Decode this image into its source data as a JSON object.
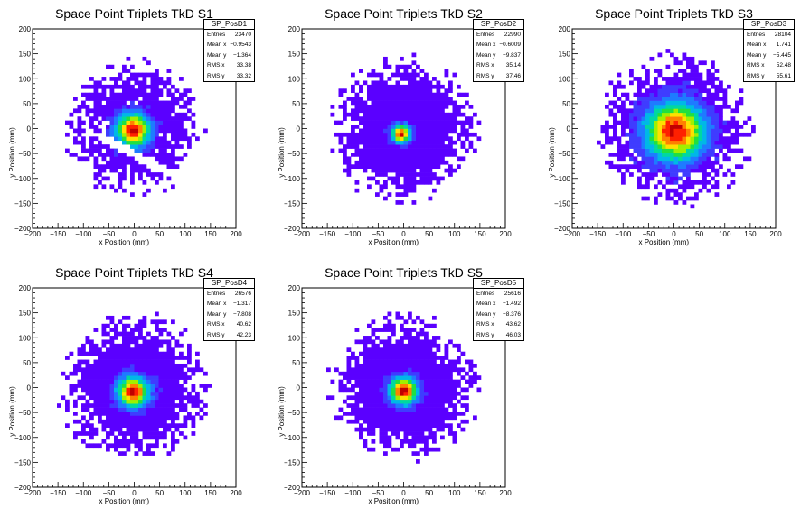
{
  "chart_data": [
    {
      "type": "heatmap",
      "title": "Space Point Triplets TkD S1",
      "xlabel": "x Position (mm)",
      "ylabel": "y Position (mm)",
      "xlim": [
        -200,
        200
      ],
      "ylim": [
        -200,
        200
      ],
      "xticks": [
        "−200",
        "−150",
        "−100",
        "−50",
        "0",
        "50",
        "100",
        "150",
        "200"
      ],
      "yticks": [
        "200",
        "150",
        "100",
        "50",
        "0",
        "−50",
        "−100",
        "−150",
        "−200"
      ],
      "stats": {
        "name": "SP_PosD1",
        "rows": [
          {
            "label": "Entries",
            "value": "23470"
          },
          {
            "label": "Mean x",
            "value": "−0.9543"
          },
          {
            "label": "Mean y",
            "value": "−1.364"
          },
          {
            "label": "RMS x",
            "value": "33.38"
          },
          {
            "label": "RMS y",
            "value": "33.32"
          }
        ]
      },
      "distribution": {
        "center": [
          -2,
          -3
        ],
        "core_sigma": 22,
        "halo_radius": 140,
        "features": "diagonal band of empty bins below the core"
      }
    },
    {
      "type": "heatmap",
      "title": "Space Point Triplets TkD S2",
      "xlabel": "x Position (mm)",
      "ylabel": "y Position (mm)",
      "xlim": [
        -200,
        200
      ],
      "ylim": [
        -200,
        200
      ],
      "xticks": [
        "−200",
        "−150",
        "−100",
        "−50",
        "0",
        "50",
        "100",
        "150",
        "200"
      ],
      "yticks": [
        "200",
        "150",
        "100",
        "50",
        "0",
        "−50",
        "−100",
        "−150",
        "−200"
      ],
      "stats": {
        "name": "SP_PosD2",
        "rows": [
          {
            "label": "Entries",
            "value": "22990"
          },
          {
            "label": "Mean x",
            "value": "−0.6009"
          },
          {
            "label": "Mean y",
            "value": "−9.837"
          },
          {
            "label": "RMS x",
            "value": "35.14"
          },
          {
            "label": "RMS y",
            "value": "37.46"
          }
        ]
      },
      "distribution": {
        "center": [
          -5,
          -10
        ],
        "core_sigma": 12,
        "halo_radius": 150
      }
    },
    {
      "type": "heatmap",
      "title": "Space Point Triplets TkD S3",
      "xlabel": "x Position (mm)",
      "ylabel": "y Position (mm)",
      "xlim": [
        -200,
        200
      ],
      "ylim": [
        -200,
        200
      ],
      "xticks": [
        "−200",
        "−150",
        "−100",
        "−50",
        "0",
        "50",
        "100",
        "150",
        "200"
      ],
      "yticks": [
        "200",
        "150",
        "100",
        "50",
        "0",
        "−50",
        "−100",
        "−150",
        "−200"
      ],
      "stats": {
        "name": "SP_PosD3",
        "rows": [
          {
            "label": "Entries",
            "value": "28104"
          },
          {
            "label": "Mean x",
            "value": "1.741"
          },
          {
            "label": "Mean y",
            "value": "−5.445"
          },
          {
            "label": "RMS x",
            "value": "52.48"
          },
          {
            "label": "RMS y",
            "value": "55.61"
          }
        ]
      },
      "distribution": {
        "center": [
          2,
          -5
        ],
        "core_sigma": 38,
        "halo_radius": 155
      }
    },
    {
      "type": "heatmap",
      "title": "Space Point Triplets TkD S4",
      "xlabel": "x Position (mm)",
      "ylabel": "y Position (mm)",
      "xlim": [
        -200,
        200
      ],
      "ylim": [
        -200,
        200
      ],
      "xticks": [
        "−200",
        "−150",
        "−100",
        "−50",
        "0",
        "50",
        "100",
        "150",
        "200"
      ],
      "yticks": [
        "200",
        "150",
        "100",
        "50",
        "0",
        "−50",
        "−100",
        "−150",
        "−200"
      ],
      "stats": {
        "name": "SP_PosD4",
        "rows": [
          {
            "label": "Entries",
            "value": "26576"
          },
          {
            "label": "Mean x",
            "value": "−1.317"
          },
          {
            "label": "Mean y",
            "value": "−7.808"
          },
          {
            "label": "RMS x",
            "value": "40.62"
          },
          {
            "label": "RMS y",
            "value": "42.23"
          }
        ]
      },
      "distribution": {
        "center": [
          -2,
          -8
        ],
        "core_sigma": 20,
        "halo_radius": 150
      }
    },
    {
      "type": "heatmap",
      "title": "Space Point Triplets TkD S5",
      "xlabel": "x Position (mm)",
      "ylabel": "y Position (mm)",
      "xlim": [
        -200,
        200
      ],
      "ylim": [
        -200,
        200
      ],
      "xticks": [
        "−200",
        "−150",
        "−100",
        "−50",
        "0",
        "50",
        "100",
        "150",
        "200"
      ],
      "yticks": [
        "200",
        "150",
        "100",
        "50",
        "0",
        "−50",
        "−100",
        "−150",
        "−200"
      ],
      "stats": {
        "name": "SP_PosD5",
        "rows": [
          {
            "label": "Entries",
            "value": "25616"
          },
          {
            "label": "Mean x",
            "value": "−1.492"
          },
          {
            "label": "Mean y",
            "value": "−8.376"
          },
          {
            "label": "RMS x",
            "value": "43.62"
          },
          {
            "label": "RMS y",
            "value": "46.03"
          }
        ]
      },
      "distribution": {
        "center": [
          0,
          -6
        ],
        "core_sigma": 18,
        "halo_radius": 150
      }
    }
  ],
  "colors": {
    "palette": [
      "#5a00ff",
      "#3f3cff",
      "#1e7bff",
      "#00b8e6",
      "#00d8a0",
      "#20e040",
      "#a0f000",
      "#ffe000",
      "#ff8000",
      "#ff2000",
      "#c00000"
    ]
  }
}
